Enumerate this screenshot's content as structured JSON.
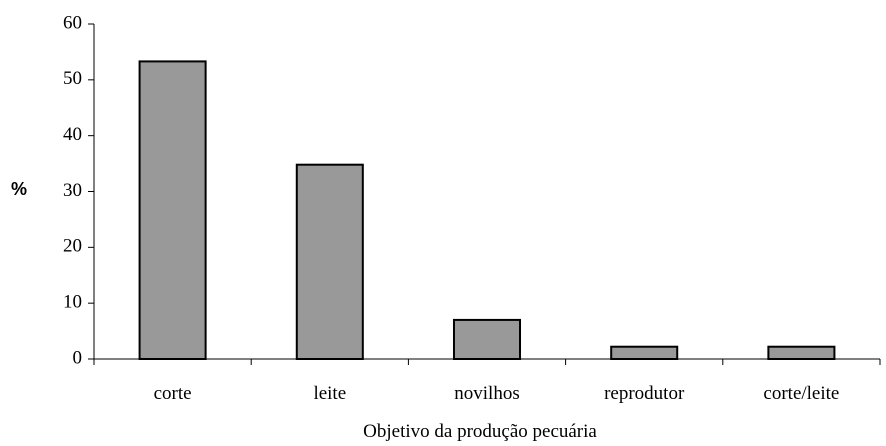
{
  "chart_data": {
    "type": "bar",
    "categories": [
      "corte",
      "leite",
      "novilhos",
      "reprodutor",
      "corte/leite"
    ],
    "values": [
      53.3,
      34.8,
      7.0,
      2.2,
      2.2
    ],
    "title": "",
    "xlabel": "Objetivo da produção pecuária",
    "ylabel": "%",
    "ylim": [
      0,
      60
    ],
    "yticks": [
      0,
      10,
      20,
      30,
      40,
      50,
      60
    ],
    "grid": false,
    "bar_color": "#999999",
    "bar_stroke": "#000000"
  }
}
